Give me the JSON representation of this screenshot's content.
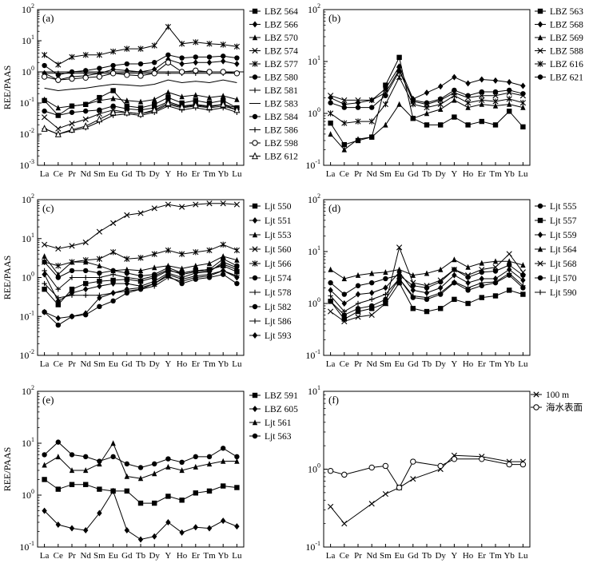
{
  "figure": {
    "background": "#ffffff",
    "line_color": "#000000"
  },
  "chart_data": [
    {
      "type": "line",
      "panel_label": "(a)",
      "y_scale": "log",
      "ylabel": "REE/PAAS",
      "ylim": [
        0.001,
        100
      ],
      "ytick_exponents": [
        "-3",
        "-2",
        "-1",
        "0",
        "1",
        "2"
      ],
      "categories": [
        "La",
        "Ce",
        "Pr",
        "Nd",
        "Sm",
        "Eu",
        "Gd",
        "Tb",
        "Dy",
        "Y",
        "Ho",
        "Er",
        "Tm",
        "Yb",
        "Lu"
      ],
      "reference_line": 1,
      "legend": "right",
      "series": [
        {
          "name": "LBZ 564",
          "marker": "square",
          "values": [
            0.12,
            0.04,
            0.08,
            0.09,
            0.15,
            0.25,
            0.08,
            0.07,
            0.09,
            0.15,
            0.1,
            0.12,
            0.1,
            0.12,
            0.07
          ]
        },
        {
          "name": "LBZ 566",
          "marker": "diamond",
          "values": [
            0.9,
            0.55,
            0.7,
            0.75,
            0.9,
            1.2,
            1.1,
            1.0,
            1.2,
            2.5,
            1.8,
            2.0,
            2.0,
            2.2,
            1.8
          ]
        },
        {
          "name": "LBZ 570",
          "marker": "triangle",
          "values": [
            0.13,
            0.07,
            0.08,
            0.09,
            0.12,
            0.14,
            0.12,
            0.11,
            0.13,
            0.22,
            0.16,
            0.18,
            0.15,
            0.17,
            0.13
          ]
        },
        {
          "name": "LBZ 574",
          "marker": "x",
          "values": [
            0.035,
            0.015,
            0.022,
            0.03,
            0.045,
            0.06,
            0.05,
            0.045,
            0.055,
            0.09,
            0.07,
            0.08,
            0.07,
            0.08,
            0.06
          ]
        },
        {
          "name": "LBZ 577",
          "marker": "asterisk",
          "values": [
            3.5,
            1.7,
            3.0,
            3.5,
            3.5,
            4.5,
            5.5,
            5.5,
            7.0,
            28.0,
            8.0,
            9.0,
            8.0,
            7.5,
            6.5
          ]
        },
        {
          "name": "LBZ 580",
          "marker": "circle-filled",
          "values": [
            1.6,
            0.8,
            1.0,
            1.1,
            1.3,
            1.6,
            1.8,
            1.8,
            2.0,
            3.5,
            2.8,
            3.0,
            3.0,
            3.2,
            2.8
          ]
        },
        {
          "name": "LBZ 581",
          "marker": "plus",
          "values": [
            0.9,
            0.9,
            0.9,
            0.9,
            0.9,
            0.9,
            0.9,
            0.9,
            0.9,
            0.9,
            0.9,
            0.9,
            0.9,
            0.9,
            0.9
          ]
        },
        {
          "name": "LBZ 583",
          "marker": "none",
          "values": [
            0.3,
            0.25,
            0.28,
            0.3,
            0.35,
            0.4,
            0.38,
            0.35,
            0.4,
            0.55,
            0.45,
            0.5,
            0.45,
            0.55,
            0.45
          ]
        },
        {
          "name": "LBZ 584",
          "marker": "circle-filled",
          "values": [
            0.055,
            0.04,
            0.05,
            0.055,
            0.06,
            0.08,
            0.065,
            0.06,
            0.07,
            0.11,
            0.08,
            0.09,
            0.08,
            0.09,
            0.07
          ]
        },
        {
          "name": "LBZ 586",
          "marker": "plus",
          "values": [
            0.015,
            0.01,
            0.013,
            0.016,
            0.025,
            0.04,
            0.045,
            0.04,
            0.05,
            0.08,
            0.06,
            0.07,
            0.06,
            0.07,
            0.05
          ]
        },
        {
          "name": "LBZ 598",
          "marker": "circle-open",
          "values": [
            0.7,
            0.55,
            0.6,
            0.65,
            0.7,
            0.9,
            0.8,
            0.75,
            0.9,
            2.0,
            1.0,
            1.1,
            1.0,
            1.0,
            0.9
          ]
        },
        {
          "name": "LBZ 612",
          "marker": "triangle-open",
          "values": [
            0.015,
            0.01,
            0.014,
            0.018,
            0.03,
            0.05,
            0.05,
            0.045,
            0.06,
            0.1,
            0.075,
            0.085,
            0.075,
            0.09,
            0.06
          ]
        }
      ]
    },
    {
      "type": "line",
      "panel_label": "(b)",
      "y_scale": "log",
      "ylabel": "",
      "ylim": [
        0.1,
        100
      ],
      "ytick_exponents": [
        "-1",
        "0",
        "1",
        "2"
      ],
      "categories": [
        "La",
        "Ce",
        "Pr",
        "Nd",
        "Sm",
        "Eu",
        "Gd",
        "Tb",
        "Dy",
        "Y",
        "Ho",
        "Er",
        "Tm",
        "Yb",
        "Lu"
      ],
      "legend": "right",
      "series": [
        {
          "name": "LBZ 563",
          "marker": "square",
          "values": [
            0.65,
            0.25,
            0.3,
            0.35,
            3.5,
            12.0,
            0.8,
            0.6,
            0.6,
            0.85,
            0.6,
            0.7,
            0.6,
            1.1,
            0.55
          ]
        },
        {
          "name": "LBZ 568",
          "marker": "diamond",
          "values": [
            2.0,
            1.5,
            1.6,
            1.8,
            3.0,
            8.0,
            1.9,
            2.5,
            3.3,
            5.0,
            3.8,
            4.5,
            4.3,
            4.0,
            3.4
          ]
        },
        {
          "name": "LBZ 569",
          "marker": "triangle",
          "values": [
            0.4,
            0.2,
            0.32,
            0.35,
            0.6,
            1.5,
            0.8,
            1.0,
            1.2,
            1.8,
            1.3,
            1.5,
            1.4,
            1.5,
            1.3
          ]
        },
        {
          "name": "LBZ 588",
          "marker": "x",
          "values": [
            2.2,
            1.8,
            1.8,
            1.8,
            2.5,
            7.0,
            1.7,
            1.5,
            1.8,
            2.5,
            2.0,
            2.2,
            2.2,
            2.5,
            2.2
          ]
        },
        {
          "name": "LBZ 616",
          "marker": "asterisk",
          "values": [
            1.0,
            0.65,
            0.7,
            0.7,
            1.5,
            5.0,
            1.5,
            1.3,
            1.5,
            2.2,
            1.6,
            1.8,
            1.7,
            1.9,
            1.6
          ]
        },
        {
          "name": "LBZ 621",
          "marker": "circle-filled",
          "values": [
            1.6,
            1.3,
            1.3,
            1.3,
            2.2,
            6.5,
            1.8,
            1.6,
            1.9,
            2.8,
            2.2,
            2.6,
            2.6,
            2.8,
            2.4
          ]
        }
      ]
    },
    {
      "type": "line",
      "panel_label": "(c)",
      "y_scale": "log",
      "ylabel": "REE/PAAS",
      "ylim": [
        0.01,
        100
      ],
      "ytick_exponents": [
        "-2",
        "-1",
        "0",
        "1",
        "2"
      ],
      "categories": [
        "La",
        "Ce",
        "Pr",
        "Nd",
        "Sm",
        "Eu",
        "Gd",
        "Tb",
        "Dy",
        "Y",
        "Ho",
        "Er",
        "Tm",
        "Yb",
        "Lu"
      ],
      "legend": "right",
      "series": [
        {
          "name": "Ljt 550",
          "marker": "square",
          "values": [
            0.5,
            0.2,
            0.5,
            0.7,
            0.8,
            0.85,
            0.9,
            0.8,
            1.0,
            1.5,
            1.3,
            1.5,
            1.6,
            2.0,
            1.4
          ]
        },
        {
          "name": "Ljt 551",
          "marker": "diamond",
          "values": [
            1.2,
            0.25,
            0.4,
            0.5,
            0.6,
            0.7,
            0.7,
            0.6,
            0.8,
            1.3,
            1.0,
            1.3,
            1.4,
            2.5,
            1.8
          ]
        },
        {
          "name": "Ljt 553",
          "marker": "triangle",
          "values": [
            3.5,
            1.2,
            2.5,
            2.5,
            2.0,
            1.5,
            1.6,
            1.5,
            1.8,
            2.0,
            1.7,
            2.0,
            2.3,
            3.5,
            2.8
          ]
        },
        {
          "name": "Ljt 560",
          "marker": "x",
          "values": [
            7.0,
            5.5,
            6.5,
            8.0,
            15.0,
            25.0,
            40.0,
            45.0,
            60.0,
            75.0,
            65.0,
            75.0,
            80.0,
            80.0,
            75.0
          ]
        },
        {
          "name": "Ljt 566",
          "marker": "asterisk",
          "values": [
            2.5,
            2.0,
            2.5,
            2.8,
            3.0,
            4.5,
            3.0,
            3.2,
            4.0,
            5.0,
            4.0,
            4.5,
            5.0,
            7.0,
            5.0
          ]
        },
        {
          "name": "Ljt 574",
          "marker": "circle-filled",
          "values": [
            2.5,
            1.0,
            1.5,
            1.5,
            1.3,
            1.5,
            1.3,
            1.1,
            1.2,
            1.8,
            1.3,
            1.5,
            1.6,
            3.0,
            2.0
          ]
        },
        {
          "name": "Ljt 578",
          "marker": "plus",
          "values": [
            1.5,
            0.5,
            1.0,
            1.0,
            1.0,
            1.2,
            1.0,
            0.9,
            1.1,
            1.6,
            1.2,
            1.4,
            1.5,
            2.2,
            1.6
          ]
        },
        {
          "name": "Ljt 582",
          "marker": "circle-filled",
          "values": [
            0.13,
            0.06,
            0.1,
            0.11,
            0.18,
            0.25,
            0.4,
            0.5,
            0.7,
            1.1,
            0.7,
            0.9,
            1.0,
            1.2,
            0.7
          ]
        },
        {
          "name": "Ljt 586",
          "marker": "plus",
          "values": [
            0.7,
            0.3,
            0.35,
            0.35,
            0.35,
            0.4,
            0.45,
            0.5,
            0.6,
            1.0,
            0.8,
            1.0,
            1.1,
            1.5,
            1.1
          ]
        },
        {
          "name": "Ljt 593",
          "marker": "diamond",
          "values": [
            0.13,
            0.09,
            0.1,
            0.12,
            0.3,
            0.4,
            0.5,
            0.55,
            0.7,
            1.2,
            0.9,
            1.1,
            1.2,
            1.5,
            1.0
          ]
        }
      ]
    },
    {
      "type": "line",
      "panel_label": "(d)",
      "y_scale": "log",
      "ylabel": "",
      "ylim": [
        0.1,
        100
      ],
      "ytick_exponents": [
        "-1",
        "0",
        "1",
        "2"
      ],
      "categories": [
        "La",
        "Ce",
        "Pr",
        "Nd",
        "Sm",
        "Eu",
        "Gd",
        "Tb",
        "Dy",
        "Y",
        "Ho",
        "Er",
        "Tm",
        "Yb",
        "Lu"
      ],
      "legend": "right",
      "series": [
        {
          "name": "Ljt 555",
          "marker": "circle-filled",
          "values": [
            1.1,
            0.6,
            0.8,
            0.9,
            1.2,
            3.0,
            1.3,
            1.2,
            1.5,
            2.5,
            1.8,
            2.2,
            2.5,
            3.5,
            2.0
          ]
        },
        {
          "name": "Ljt 557",
          "marker": "square",
          "values": [
            1.1,
            0.5,
            0.7,
            0.8,
            1.0,
            2.5,
            0.8,
            0.7,
            0.8,
            1.2,
            1.0,
            1.3,
            1.4,
            1.8,
            1.5
          ]
        },
        {
          "name": "Ljt 559",
          "marker": "diamond",
          "values": [
            1.8,
            1.0,
            1.5,
            1.6,
            2.0,
            4.0,
            1.8,
            1.6,
            2.0,
            3.5,
            2.5,
            3.0,
            3.0,
            4.5,
            2.8
          ]
        },
        {
          "name": "Ljt 564",
          "marker": "triangle",
          "values": [
            4.5,
            3.0,
            3.5,
            3.8,
            4.0,
            4.5,
            3.5,
            3.8,
            4.5,
            7.0,
            5.0,
            6.0,
            6.5,
            6.5,
            5.5
          ]
        },
        {
          "name": "Ljt 568",
          "marker": "x",
          "values": [
            0.7,
            0.45,
            0.55,
            0.6,
            1.0,
            12.0,
            2.5,
            2.2,
            2.8,
            4.5,
            3.5,
            4.5,
            5.0,
            9.0,
            4.0
          ]
        },
        {
          "name": "Ljt 570",
          "marker": "circle-filled",
          "values": [
            2.5,
            1.5,
            2.2,
            2.5,
            3.0,
            3.5,
            2.2,
            2.0,
            2.6,
            4.5,
            3.2,
            4.0,
            4.2,
            5.5,
            3.5
          ]
        },
        {
          "name": "Ljt 590",
          "marker": "plus",
          "values": [
            1.4,
            0.7,
            1.0,
            1.2,
            1.5,
            3.0,
            1.4,
            1.3,
            1.6,
            2.6,
            2.0,
            2.5,
            2.6,
            3.8,
            2.2
          ]
        }
      ]
    },
    {
      "type": "line",
      "panel_label": "(e)",
      "y_scale": "log",
      "ylabel": "REE/PAAS",
      "ylim": [
        0.1,
        100
      ],
      "ytick_exponents": [
        "-1",
        "0",
        "1",
        "2"
      ],
      "categories": [
        "La",
        "Ce",
        "Pr",
        "Nd",
        "Sm",
        "Eu",
        "Gd",
        "Tb",
        "Dy",
        "Y",
        "Ho",
        "Er",
        "Tm",
        "Yb",
        "Lu"
      ],
      "legend": "right",
      "series": [
        {
          "name": "LBZ 591",
          "marker": "square",
          "values": [
            2.0,
            1.3,
            1.6,
            1.6,
            1.3,
            1.2,
            1.2,
            0.7,
            0.7,
            0.95,
            0.8,
            1.1,
            1.2,
            1.5,
            1.4
          ]
        },
        {
          "name": "LBZ 605",
          "marker": "diamond",
          "values": [
            0.5,
            0.27,
            0.23,
            0.21,
            0.45,
            1.2,
            0.21,
            0.14,
            0.16,
            0.3,
            0.19,
            0.24,
            0.23,
            0.32,
            0.25
          ]
        },
        {
          "name": "Ljt 561",
          "marker": "triangle",
          "values": [
            3.8,
            5.5,
            3.0,
            3.0,
            4.0,
            10.0,
            2.3,
            2.1,
            2.6,
            3.5,
            3.0,
            3.5,
            4.0,
            4.5,
            4.5
          ]
        },
        {
          "name": "Ljt 563",
          "marker": "circle-filled",
          "values": [
            6.0,
            10.5,
            6.0,
            5.5,
            4.5,
            5.5,
            4.0,
            3.4,
            4.0,
            5.0,
            4.3,
            5.5,
            5.5,
            8.0,
            5.5
          ]
        }
      ]
    },
    {
      "type": "line",
      "panel_label": "(f)",
      "y_scale": "log",
      "ylabel": "",
      "ylim": [
        0.1,
        10
      ],
      "ytick_exponents": [
        "-1",
        "0",
        "1"
      ],
      "categories": [
        "La",
        "Ce",
        "Pr",
        "Nd",
        "Sm",
        "Eu",
        "Gd",
        "Tb",
        "Dy",
        "Y",
        "Ho",
        "Er",
        "Tm",
        "Yb",
        "Lu"
      ],
      "legend": "top-right",
      "series": [
        {
          "name": "100 m",
          "marker": "x",
          "values": [
            0.33,
            0.2,
            null,
            0.36,
            0.48,
            0.58,
            0.75,
            null,
            1.0,
            1.5,
            null,
            1.45,
            null,
            1.25,
            1.25
          ]
        },
        {
          "name": "海水表面",
          "marker": "circle-open",
          "values": [
            0.95,
            0.85,
            null,
            1.05,
            1.1,
            0.58,
            1.25,
            null,
            1.1,
            1.35,
            null,
            1.35,
            null,
            1.15,
            1.15
          ]
        }
      ]
    }
  ]
}
